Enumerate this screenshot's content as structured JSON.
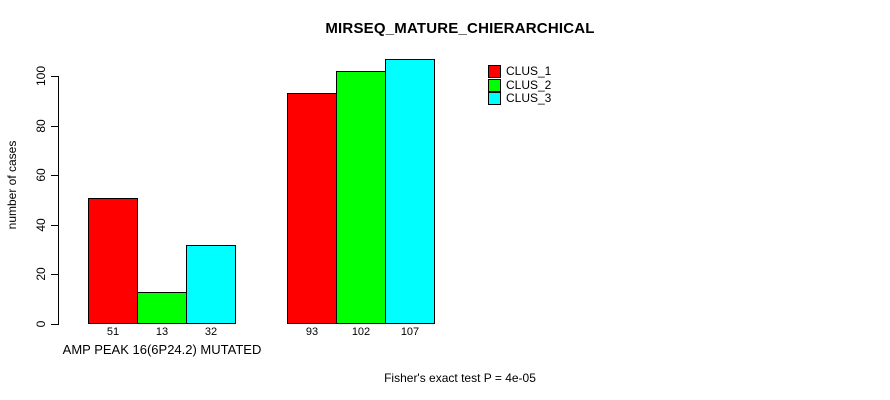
{
  "chart_data": {
    "type": "bar",
    "title": "MIRSEQ_MATURE_CHIERARCHICAL",
    "ylabel": "number of cases",
    "xlabel": "",
    "ylim": [
      0,
      100
    ],
    "yticks": [
      0,
      20,
      40,
      60,
      80,
      100
    ],
    "grid": false,
    "legend_position": "top-right",
    "bar_border": "#000000",
    "axis_color": "#000000",
    "categories": [
      "AMP PEAK 16(6P24.2) MUTATED",
      ""
    ],
    "series": [
      {
        "name": "CLUS_1",
        "color": "#ff0000",
        "values": [
          51,
          93
        ]
      },
      {
        "name": "CLUS_2",
        "color": "#00ff00",
        "values": [
          13,
          102
        ]
      },
      {
        "name": "CLUS_3",
        "color": "#00ffff",
        "values": [
          32,
          107
        ]
      }
    ],
    "bar_value_labels": [
      [
        "51",
        "13",
        "32"
      ],
      [
        "93",
        "102",
        "107"
      ]
    ],
    "annotation": "Fisher's exact test P = 4e-05"
  }
}
